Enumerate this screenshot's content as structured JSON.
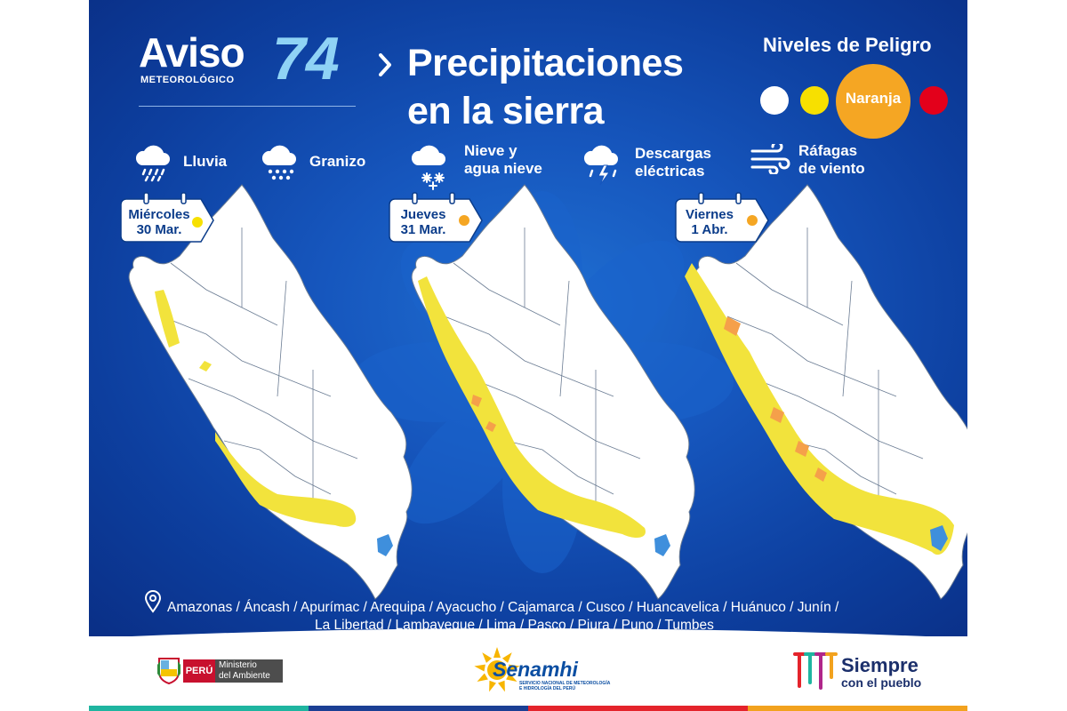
{
  "header": {
    "aviso_word": "Aviso",
    "aviso_sub": "METEOROLÓGICO",
    "aviso_number": "74",
    "title_line1": "Precipitaciones",
    "title_line2": "en la sierra"
  },
  "danger_levels": {
    "title": "Niveles de Peligro",
    "levels": [
      {
        "name": "blanco",
        "color": "#ffffff"
      },
      {
        "name": "amarillo",
        "color": "#f7e000"
      },
      {
        "name": "Naranja",
        "color": "#f5a623",
        "label": "Naranja",
        "active": true
      },
      {
        "name": "rojo",
        "color": "#e3001b"
      }
    ]
  },
  "legend": {
    "lluvia": "Lluvia",
    "granizo": "Granizo",
    "nieve_line1": "Nieve y",
    "nieve_line2": "agua nieve",
    "descargas_line1": "Descargas",
    "descargas_line2": "eléctricas",
    "rafagas_line1": "Ráfagas",
    "rafagas_line2": "de viento",
    "icons": [
      "rain-cloud-icon",
      "hail-cloud-icon",
      "snow-cloud-icon",
      "lightning-cloud-icon",
      "wind-icon"
    ]
  },
  "days": [
    {
      "day": "Miércoles",
      "date": "30 Mar.",
      "marker_color": "#f7e000"
    },
    {
      "day": "Jueves",
      "date": "31 Mar.",
      "marker_color": "#f5a623"
    },
    {
      "day": "Viernes",
      "date": "1 Abr.",
      "marker_color": "#f5a623"
    }
  ],
  "map_colors": {
    "land": "#ffffff",
    "yellow": "#f2e33c",
    "orange": "#f5a04a",
    "lake": "#3f8fdc",
    "border": "#6b7c93"
  },
  "regions": {
    "line1": "Amazonas / Áncash / Apurímac / Arequipa / Ayacucho / Cajamarca / Cusco / Huancavelica / Huánuco / Junín /",
    "line2": "La Libertad / Lambayeque / Lima / Pasco / Piura / Puno / Tumbes"
  },
  "footer": {
    "peru_label": "PERÚ",
    "ministry_line1": "Ministerio",
    "ministry_line2": "del Ambiente",
    "senamhi_name": "Senamhi",
    "senamhi_sub1": "SERVICIO NACIONAL DE METEOROLOGÍA",
    "senamhi_sub2": "E HIDROLOGÍA DEL PERÚ",
    "siempre_line1": "Siempre",
    "siempre_line2": "con el pueblo",
    "stripe_colors": [
      "#1fb5a0",
      "#1b3f94",
      "#e4232b",
      "#f2a21e"
    ]
  }
}
